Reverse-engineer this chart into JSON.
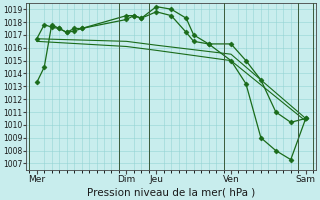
{
  "title": "Pression niveau de la mer( hPa )",
  "bg_color": "#c8eded",
  "grid_color": "#94d4d4",
  "line_color": "#1a6b1a",
  "vline_color": "#3a5a3a",
  "ylim": [
    1006.5,
    1019.5
  ],
  "yticks": [
    1007,
    1008,
    1009,
    1010,
    1011,
    1012,
    1013,
    1014,
    1015,
    1016,
    1017,
    1018,
    1019
  ],
  "xlim": [
    -0.2,
    19.2
  ],
  "xtick_positions": [
    0.5,
    6.5,
    8.5,
    13.5,
    18.5
  ],
  "xtick_labels": [
    "Mer",
    "Dim",
    "Jeu",
    "Ven",
    "Sam"
  ],
  "vlines_x": [
    0,
    6,
    8,
    13,
    18,
    19
  ],
  "lines": [
    {
      "x": [
        0.5,
        1.0,
        1.5,
        2.0,
        2.5,
        3.0,
        3.5,
        6.5,
        7.0,
        7.5,
        8.5,
        9.5,
        10.5,
        11.0,
        12.0,
        13.5,
        14.5,
        15.5,
        16.5,
        17.5,
        18.5
      ],
      "y": [
        1013.3,
        1014.5,
        1017.8,
        1017.5,
        1017.2,
        1017.3,
        1017.5,
        1018.5,
        1018.5,
        1018.3,
        1019.2,
        1019.0,
        1018.3,
        1017.0,
        1016.3,
        1016.3,
        1015.0,
        1013.5,
        1011.0,
        1010.2,
        1010.5
      ],
      "marker": "D",
      "ms": 2.5,
      "lw": 0.9
    },
    {
      "x": [
        0.5,
        1.0,
        1.5,
        2.0,
        2.5,
        3.0,
        3.5,
        6.5,
        7.0,
        7.5,
        8.5,
        9.5,
        10.5,
        11.0,
        12.0,
        13.5,
        14.5,
        15.5,
        16.5,
        17.5,
        18.5
      ],
      "y": [
        1016.7,
        1017.8,
        1017.6,
        1017.5,
        1017.2,
        1017.5,
        1017.5,
        1018.2,
        1018.5,
        1018.3,
        1018.8,
        1018.5,
        1017.2,
        1016.5,
        1016.3,
        1015.0,
        1013.2,
        1009.0,
        1008.0,
        1007.3,
        1010.5
      ],
      "marker": "D",
      "ms": 2.5,
      "lw": 0.9
    },
    {
      "x": [
        0.5,
        6.5,
        8.5,
        13.5,
        18.5
      ],
      "y": [
        1016.7,
        1016.5,
        1016.2,
        1015.5,
        1010.5
      ],
      "marker": null,
      "ms": 0,
      "lw": 0.8
    },
    {
      "x": [
        0.5,
        6.5,
        8.5,
        13.5,
        18.5
      ],
      "y": [
        1016.5,
        1016.1,
        1015.8,
        1015.0,
        1010.3
      ],
      "marker": null,
      "ms": 0,
      "lw": 0.8
    }
  ],
  "title_fontsize": 7.5,
  "xlabel_fontsize": 6.5,
  "ylabel_fontsize": 5.5
}
